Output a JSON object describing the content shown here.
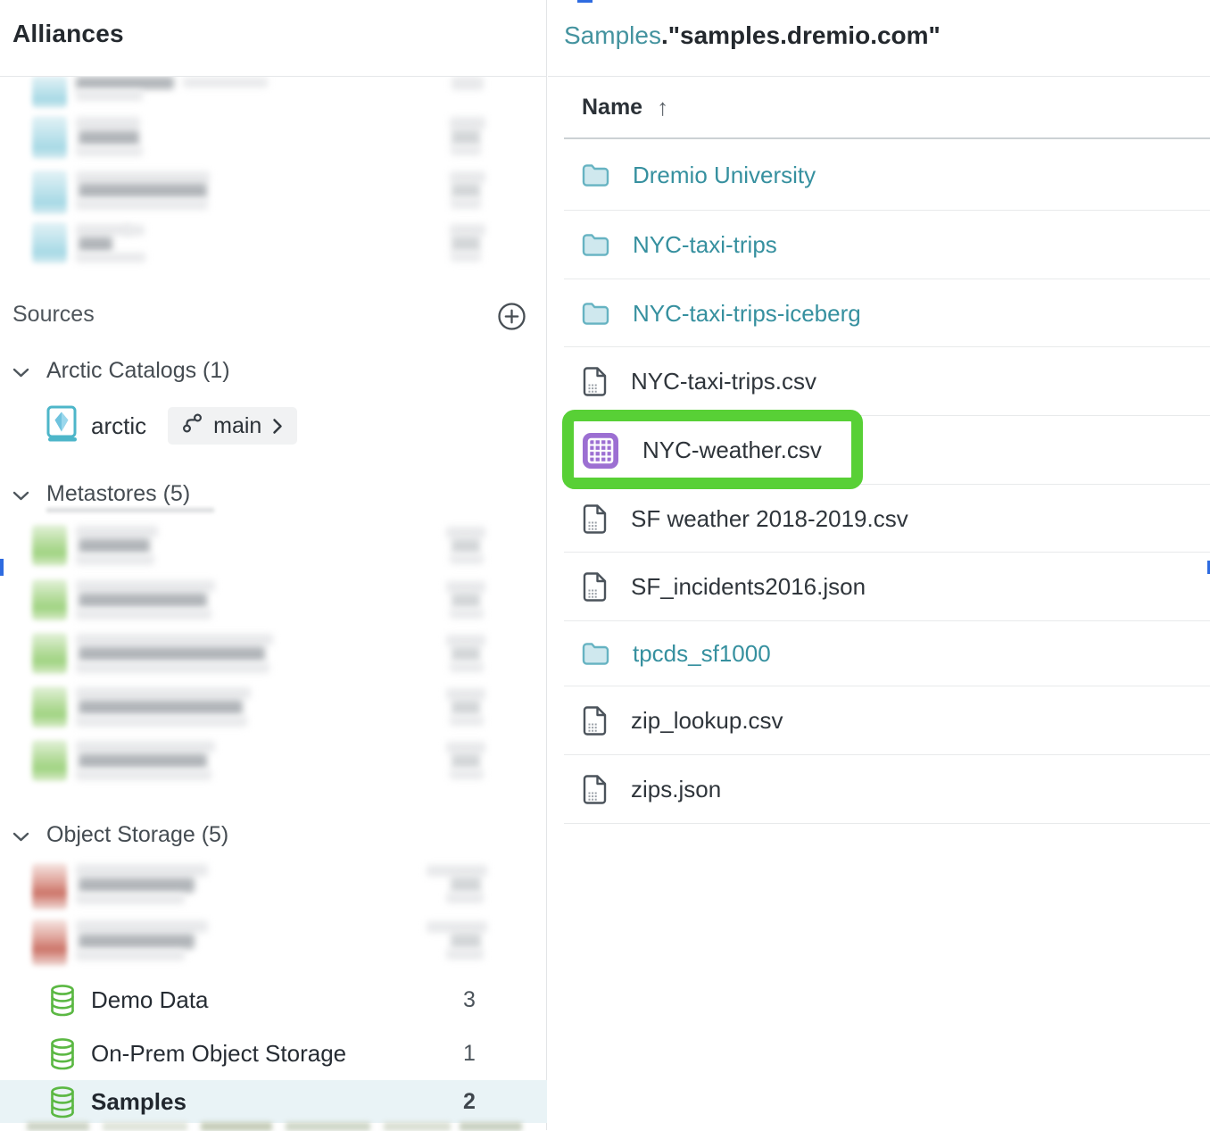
{
  "window": {
    "sidebar_title": "Alliances"
  },
  "sidebar": {
    "sources": {
      "label": "Sources",
      "add_icon": "plus-circle"
    },
    "sections": [
      {
        "id": "arctic-catalogs",
        "label": "Arctic Catalogs (1)",
        "expanded": true
      },
      {
        "id": "metastores",
        "label": "Metastores (5)",
        "expanded": true
      },
      {
        "id": "object-storage",
        "label": "Object Storage (5)",
        "expanded": true
      }
    ],
    "arctic_catalog": {
      "name": "arctic",
      "branch": "main",
      "icon": "catalog-book",
      "branch_icon": "git-branch"
    },
    "object_storage_items": [
      {
        "name": "Demo Data",
        "count": "3",
        "selected": false,
        "icon": "database"
      },
      {
        "name": "On-Prem Object Storage",
        "count": "1",
        "selected": false,
        "icon": "database"
      },
      {
        "name": "Samples",
        "count": "2",
        "selected": true,
        "icon": "database"
      }
    ]
  },
  "main": {
    "breadcrumb": {
      "source": "Samples",
      "separator": ".",
      "folder": "\"samples.dremio.com\""
    },
    "table": {
      "name_column": "Name",
      "sort_direction": "ascending",
      "sort_icon": "arrow-up",
      "rows": [
        {
          "name": "Dremio University",
          "type": "folder"
        },
        {
          "name": "NYC-taxi-trips",
          "type": "folder"
        },
        {
          "name": "NYC-taxi-trips-iceberg",
          "type": "folder"
        },
        {
          "name": "NYC-taxi-trips.csv",
          "type": "file"
        },
        {
          "name": "NYC-weather.csv",
          "type": "dataset",
          "highlighted": true
        },
        {
          "name": "SF weather 2018-2019.csv",
          "type": "file"
        },
        {
          "name": "SF_incidents2016.json",
          "type": "file"
        },
        {
          "name": "tpcds_sf1000",
          "type": "folder"
        },
        {
          "name": "zip_lookup.csv",
          "type": "file"
        },
        {
          "name": "zips.json",
          "type": "file"
        }
      ]
    }
  },
  "colors": {
    "teal_link": "#36909f",
    "highlight_green": "#58d036",
    "dataset_purple": "#9c6fd2",
    "selected_row_bg": "#e9f3f6",
    "accent_blue": "#2e6be0",
    "db_icon_green": "#5bb843",
    "folder_fill": "#cfe8ee",
    "folder_stroke": "#66b3c2",
    "file_icon_stroke": "#4b535b"
  }
}
